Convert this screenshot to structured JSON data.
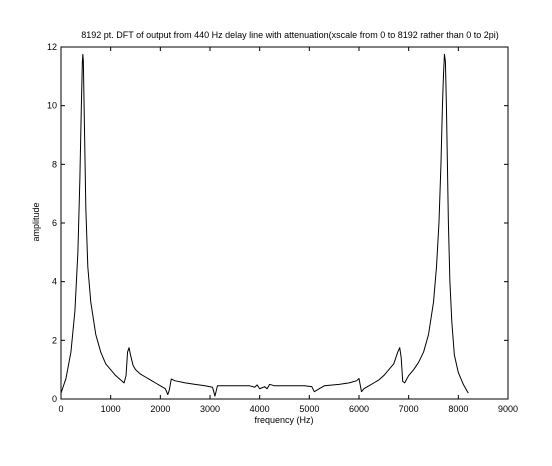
{
  "chart_data": {
    "type": "line",
    "title": "8192 pt. DFT of output from 440 Hz delay line with attenuation(xscale from 0 to 8192 rather than 0 to 2pi)",
    "xlabel": "frequency (Hz)",
    "ylabel": "amplitude",
    "xlim": [
      0,
      9000
    ],
    "ylim": [
      0,
      12
    ],
    "xticks": [
      0,
      1000,
      2000,
      3000,
      4000,
      5000,
      6000,
      7000,
      8000,
      9000
    ],
    "yticks": [
      0,
      2,
      4,
      6,
      8,
      10,
      12
    ],
    "xtick_labels": [
      "0",
      "1000",
      "2000",
      "3000",
      "4000",
      "5000",
      "6000",
      "7000",
      "8000",
      "9000"
    ],
    "ytick_labels": [
      "0",
      "2",
      "4",
      "6",
      "8",
      "10",
      "12"
    ],
    "grid": false,
    "series": [
      {
        "color": "#000000",
        "x": [
          0,
          100,
          200,
          280,
          340,
          380,
          410,
          430,
          440,
          450,
          470,
          500,
          540,
          600,
          700,
          800,
          900,
          1000,
          1100,
          1200,
          1270,
          1310,
          1340,
          1370,
          1400,
          1450,
          1500,
          1600,
          1700,
          1800,
          1900,
          2000,
          2100,
          2150,
          2180,
          2220,
          2300,
          2500,
          2700,
          2900,
          3050,
          3100,
          3150,
          3300,
          3600,
          3800,
          3900,
          3950,
          4000,
          4100,
          4150,
          4200,
          4300,
          4500,
          4700,
          4900,
          5050,
          5100,
          5300,
          5600,
          5800,
          5950,
          6000,
          6050,
          6100,
          6200,
          6300,
          6400,
          6500,
          6600,
          6700,
          6780,
          6820,
          6850,
          6880,
          6920,
          7000,
          7100,
          7200,
          7300,
          7400,
          7500,
          7560,
          7610,
          7650,
          7680,
          7700,
          7720,
          7740,
          7760,
          7780,
          7800,
          7830,
          7870,
          7920,
          8000,
          8100,
          8200
        ],
        "y": [
          0.2,
          0.7,
          1.6,
          3.0,
          5.0,
          7.5,
          10.0,
          11.5,
          11.75,
          11.5,
          9.5,
          6.5,
          4.5,
          3.3,
          2.2,
          1.6,
          1.2,
          1.0,
          0.8,
          0.65,
          0.55,
          0.8,
          1.6,
          1.75,
          1.5,
          1.15,
          1.0,
          0.85,
          0.75,
          0.65,
          0.55,
          0.45,
          0.35,
          0.15,
          0.3,
          0.68,
          0.62,
          0.55,
          0.5,
          0.45,
          0.4,
          0.1,
          0.45,
          0.45,
          0.45,
          0.45,
          0.4,
          0.48,
          0.35,
          0.42,
          0.35,
          0.5,
          0.45,
          0.45,
          0.45,
          0.45,
          0.42,
          0.25,
          0.45,
          0.5,
          0.55,
          0.62,
          0.7,
          0.25,
          0.35,
          0.45,
          0.55,
          0.65,
          0.8,
          1.0,
          1.2,
          1.6,
          1.75,
          1.4,
          0.6,
          0.55,
          0.8,
          1.0,
          1.25,
          1.6,
          2.2,
          3.3,
          4.5,
          6.0,
          8.0,
          10.0,
          11.0,
          11.75,
          11.5,
          10.0,
          8.0,
          6.0,
          4.0,
          2.6,
          1.5,
          0.9,
          0.5,
          0.2
        ]
      }
    ]
  }
}
